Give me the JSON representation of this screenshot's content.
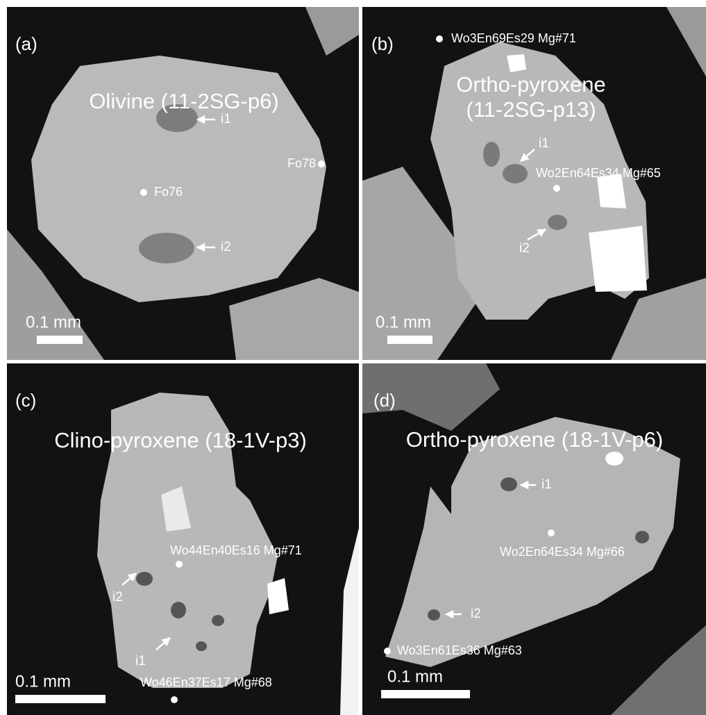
{
  "panels": [
    {
      "label": "(a)",
      "title": [
        "Olivine (11-2SG-p6)"
      ],
      "annotations": [
        "i1",
        "i2",
        "Fo76",
        "Fo78"
      ],
      "scale_bar": "0.1 mm"
    },
    {
      "label": "(b)",
      "title": [
        "Ortho-pyroxene",
        "(11-2SG-p13)"
      ],
      "annotations": [
        "Wo3En69Es29 Mg#71",
        "i1",
        "Wo2En64Es34 Mg#65",
        "i2"
      ],
      "scale_bar": "0.1 mm"
    },
    {
      "label": "(c)",
      "title": [
        "Clino-pyroxene (18-1V-p3)"
      ],
      "annotations": [
        "Wo44En40Es16 Mg#71",
        "i2",
        "i1",
        "Wo46En37Es17 Mg#68"
      ],
      "scale_bar": "0.1 mm"
    },
    {
      "label": "(d)",
      "title": [
        "Ortho-pyroxene (18-1V-p6)"
      ],
      "annotations": [
        "i1",
        "Wo2En64Es34 Mg#66",
        "i2",
        "Wo3En61Es36 Mg#63"
      ],
      "scale_bar": "0.1 mm"
    }
  ]
}
